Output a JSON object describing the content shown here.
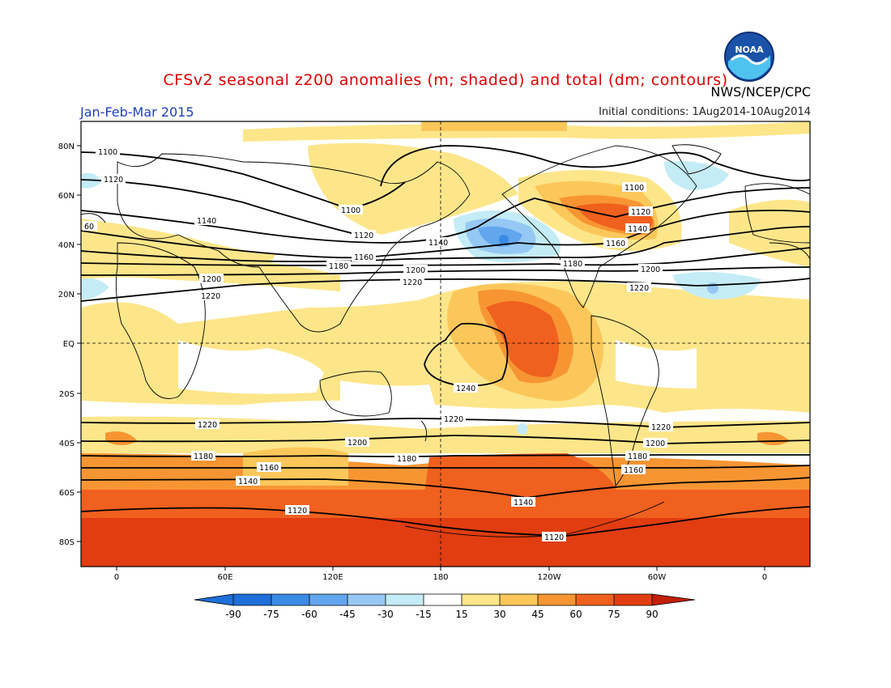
{
  "header": {
    "title": "CFSv2 seasonal z200 anomalies (m; shaded) and total (dm; contours)",
    "agency": "NWS/NCEP/CPC",
    "period": "Jan-Feb-Mar 2015",
    "initial_conditions": "Initial conditions: 1Aug2014-10Aug2014",
    "logo_text": "NOAA"
  },
  "map": {
    "lat_labels": [
      "80N",
      "60N",
      "40N",
      "20N",
      "EQ",
      "20S",
      "40S",
      "60S",
      "80S"
    ],
    "lon_labels": [
      "0",
      "60E",
      "120E",
      "180",
      "120W",
      "60W",
      "0"
    ],
    "contour_labels": [
      "1100",
      "1120",
      "1140",
      "1160",
      "1180",
      "1200",
      "1220",
      "1240",
      "60"
    ]
  },
  "colorbar": {
    "labels": [
      "-90",
      "-75",
      "-60",
      "-45",
      "-30",
      "-15",
      "15",
      "30",
      "45",
      "60",
      "75",
      "90"
    ],
    "colors": [
      "#1e6fd9",
      "#3a8be6",
      "#63a6ee",
      "#96c8f4",
      "#c4ecf6",
      "#ffffff",
      "#fde68a",
      "#fcc75a",
      "#f79533",
      "#f0601e",
      "#e13d10",
      "#c01f08"
    ]
  }
}
